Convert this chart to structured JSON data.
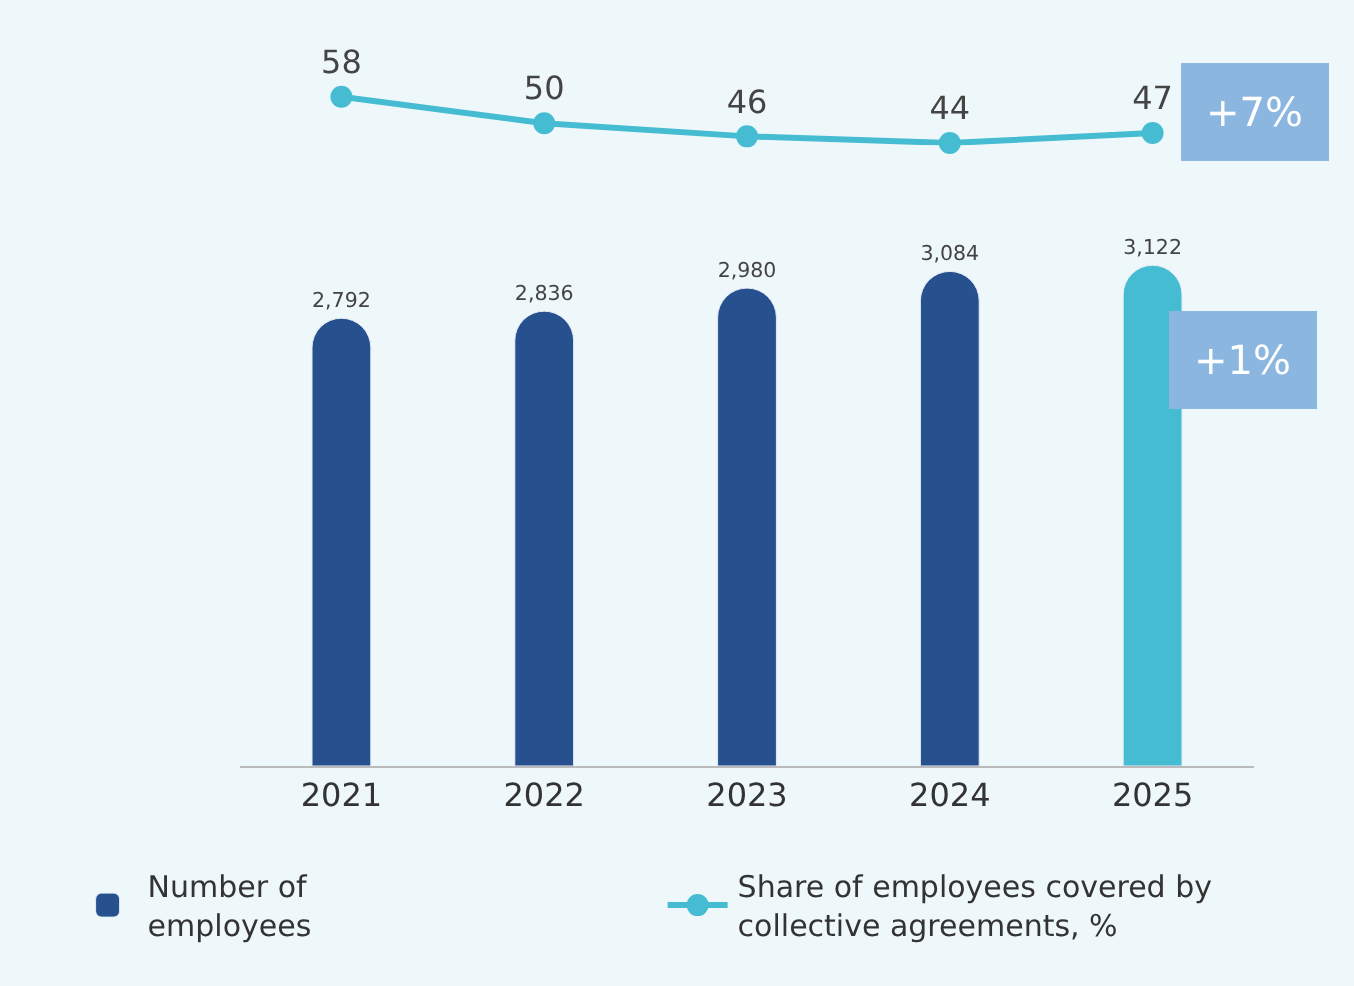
{
  "chart_data": [
    {
      "type": "line",
      "categories": [
        "2021",
        "2022",
        "2023",
        "2024",
        "2025"
      ],
      "series": [
        {
          "name": "Share of employees covered by collective agreements, %",
          "color": "#45bcd1",
          "values": [
            58,
            50,
            46,
            44,
            47
          ],
          "value_labels": [
            "58",
            "50",
            "46",
            "44",
            "47"
          ]
        }
      ],
      "marker": "circle",
      "line_style": "solid",
      "legend": "bottom",
      "tick_labels": false,
      "annotations": [
        "+7%"
      ]
    },
    {
      "type": "bar",
      "categories": [
        "2021",
        "2022",
        "2023",
        "2024",
        "2025"
      ],
      "series": [
        {
          "name": "Number of employees",
          "colors": [
            "#27508f",
            "#27508f",
            "#27508f",
            "#27508f",
            "#45bcd1"
          ],
          "color": "#27508f",
          "values": [
            2792,
            2836,
            2980,
            3084,
            3122
          ],
          "value_labels": [
            "2,792",
            "2,836",
            "2,980",
            "3,084",
            "3,122"
          ]
        }
      ],
      "legend": "bottom",
      "tick_labels": "x",
      "annotations": [
        "+1%"
      ]
    }
  ]
}
